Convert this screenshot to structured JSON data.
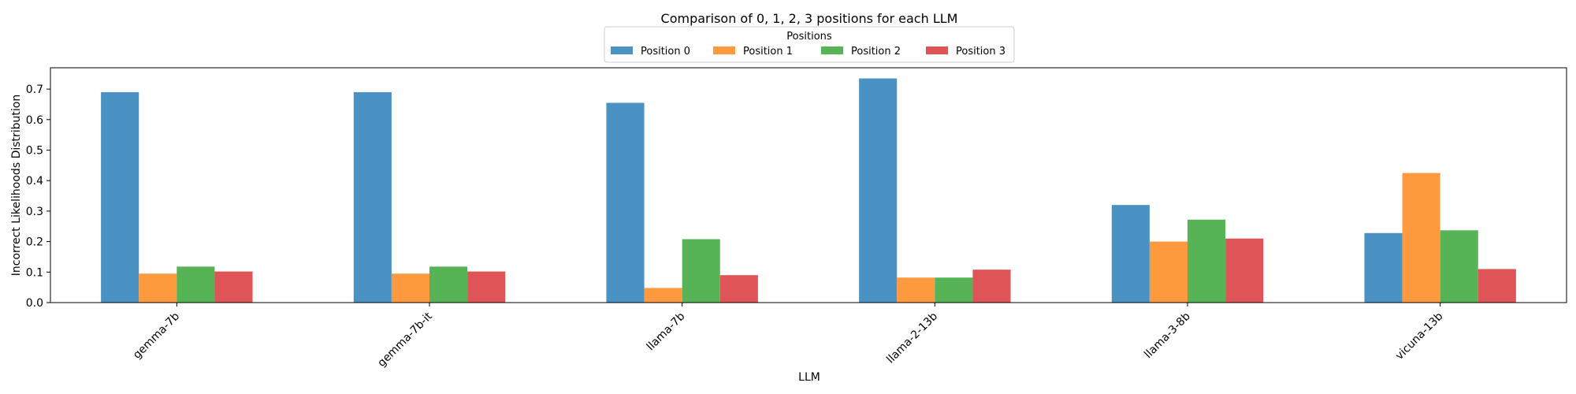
{
  "chart_data": {
    "type": "bar",
    "title": "Comparison of 0, 1, 2, 3 positions for each LLM",
    "xlabel": "LLM",
    "ylabel": "Incorrect Likelihoods Distribution",
    "categories": [
      "gemma-7b",
      "gemma-7b-it",
      "llama-7b",
      "llama-2-13b",
      "llama-3-8b",
      "vicuna-13b"
    ],
    "ylim": [
      0,
      0.77
    ],
    "yticks": [
      "0.0",
      "0.1",
      "0.2",
      "0.3",
      "0.4",
      "0.5",
      "0.6",
      "0.7"
    ],
    "grid": false,
    "legend": {
      "title": "Positions",
      "placement": "top-center"
    },
    "series": [
      {
        "name": "Position 0",
        "color": "#4a92c4",
        "values": [
          0.69,
          0.69,
          0.655,
          0.735,
          0.32,
          0.228
        ]
      },
      {
        "name": "Position 1",
        "color": "#fe9a3e",
        "values": [
          0.095,
          0.095,
          0.048,
          0.082,
          0.2,
          0.425
        ]
      },
      {
        "name": "Position 2",
        "color": "#56b356",
        "values": [
          0.118,
          0.118,
          0.208,
          0.082,
          0.272,
          0.237
        ]
      },
      {
        "name": "Position 3",
        "color": "#df5456",
        "values": [
          0.102,
          0.102,
          0.09,
          0.108,
          0.21,
          0.11
        ]
      }
    ]
  }
}
